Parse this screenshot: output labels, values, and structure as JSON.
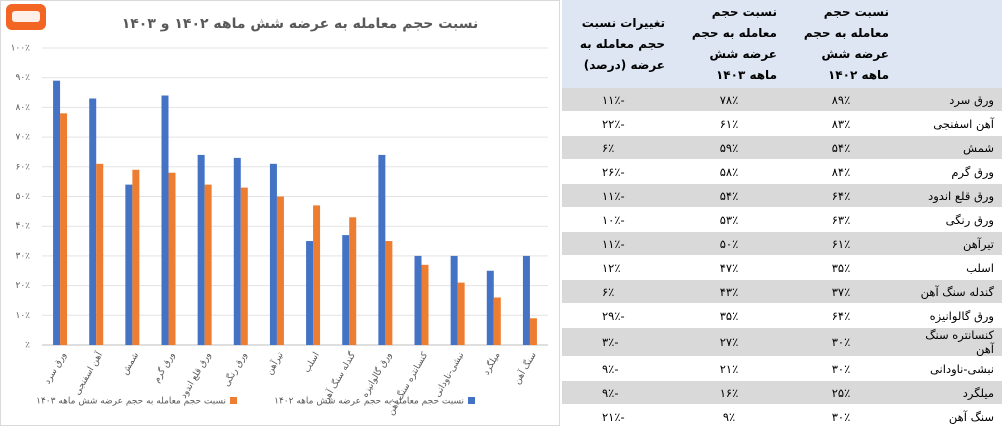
{
  "chart_data": {
    "type": "bar",
    "title": "نسبت حجم معامله به عرضه شش ماهه ۱۴۰۲ و ۱۴۰۳",
    "categories": [
      "ورق سرد",
      "آهن اسفنجی",
      "شمش",
      "ورق گرم",
      "ورق قلع اندود",
      "ورق رنگی",
      "تیرآهن",
      "اسلب",
      "گندله سنگ آهن",
      "ورق گالوانیزه",
      "کنسانتره سنگ آهن",
      "نبشی-ناودانی",
      "میلگرد",
      "سنگ آهن"
    ],
    "series": [
      {
        "name": "نسبت حجم معامله به حجم عرضه شش ماهه ۱۴۰۲",
        "color": "#4472c4",
        "values": [
          89,
          83,
          54,
          84,
          64,
          63,
          61,
          35,
          37,
          64,
          30,
          30,
          25,
          30
        ]
      },
      {
        "name": "نسبت حجم معامله به حجم عرضه شش ماهه ۱۴۰۳",
        "color": "#ed7d31",
        "values": [
          78,
          61,
          59,
          58,
          54,
          53,
          50,
          47,
          43,
          35,
          27,
          21,
          16,
          9
        ]
      }
    ],
    "ylim": [
      0,
      100
    ],
    "yticks": [
      {
        "value": 0,
        "label": "٪"
      },
      {
        "value": 10,
        "label": "۱۰٪"
      },
      {
        "value": 20,
        "label": "۲۰٪"
      },
      {
        "value": 30,
        "label": "۳۰٪"
      },
      {
        "value": 40,
        "label": "۴۰٪"
      },
      {
        "value": 50,
        "label": "۵۰٪"
      },
      {
        "value": 60,
        "label": "۶۰٪"
      },
      {
        "value": 70,
        "label": "۷۰٪"
      },
      {
        "value": 80,
        "label": "۸۰٪"
      },
      {
        "value": 90,
        "label": "۹۰٪"
      },
      {
        "value": 100,
        "label": "۱۰۰٪"
      }
    ],
    "grid": true,
    "legend": "bottom"
  },
  "table": {
    "header": [
      "نسبت حجم معامله به حجم عرضه شش ماهه ۱۴۰۲",
      "نسبت حجم معامله به حجم عرضه شش ماهه ۱۴۰۳",
      "تغییرات نسبت حجم معامله به عرضه (درصد)"
    ],
    "rows": [
      [
        "ورق سرد",
        "۸۹٪",
        "۷۸٪",
        "-۱۱٪"
      ],
      [
        "آهن اسفنجی",
        "۸۳٪",
        "۶۱٪",
        "-۲۲٪"
      ],
      [
        "شمش",
        "۵۴٪",
        "۵۹٪",
        "۶٪"
      ],
      [
        "ورق گرم",
        "۸۴٪",
        "۵۸٪",
        "-۲۶٪"
      ],
      [
        "ورق قلع اندود",
        "۶۴٪",
        "۵۴٪",
        "-۱۱٪"
      ],
      [
        "ورق رنگی",
        "۶۳٪",
        "۵۳٪",
        "-۱۰٪"
      ],
      [
        "تیرآهن",
        "۶۱٪",
        "۵۰٪",
        "-۱۱٪"
      ],
      [
        "اسلب",
        "۳۵٪",
        "۴۷٪",
        "۱۲٪"
      ],
      [
        "گندله سنگ آهن",
        "۳۷٪",
        "۴۳٪",
        "۶٪"
      ],
      [
        "ورق گالوانیزه",
        "۶۴٪",
        "۳۵٪",
        "-۲۹٪"
      ],
      [
        "کنسانتره سنگ آهن",
        "۳۰٪",
        "۲۷٪",
        "-۳٪"
      ],
      [
        "نبشی-ناودانی",
        "۳۰٪",
        "۲۱٪",
        "-۹٪"
      ],
      [
        "میلگرد",
        "۲۵٪",
        "۱۶٪",
        "-۹٪"
      ],
      [
        "سنگ آهن",
        "۳۰٪",
        "۹٪",
        "-۲۱٪"
      ]
    ]
  }
}
